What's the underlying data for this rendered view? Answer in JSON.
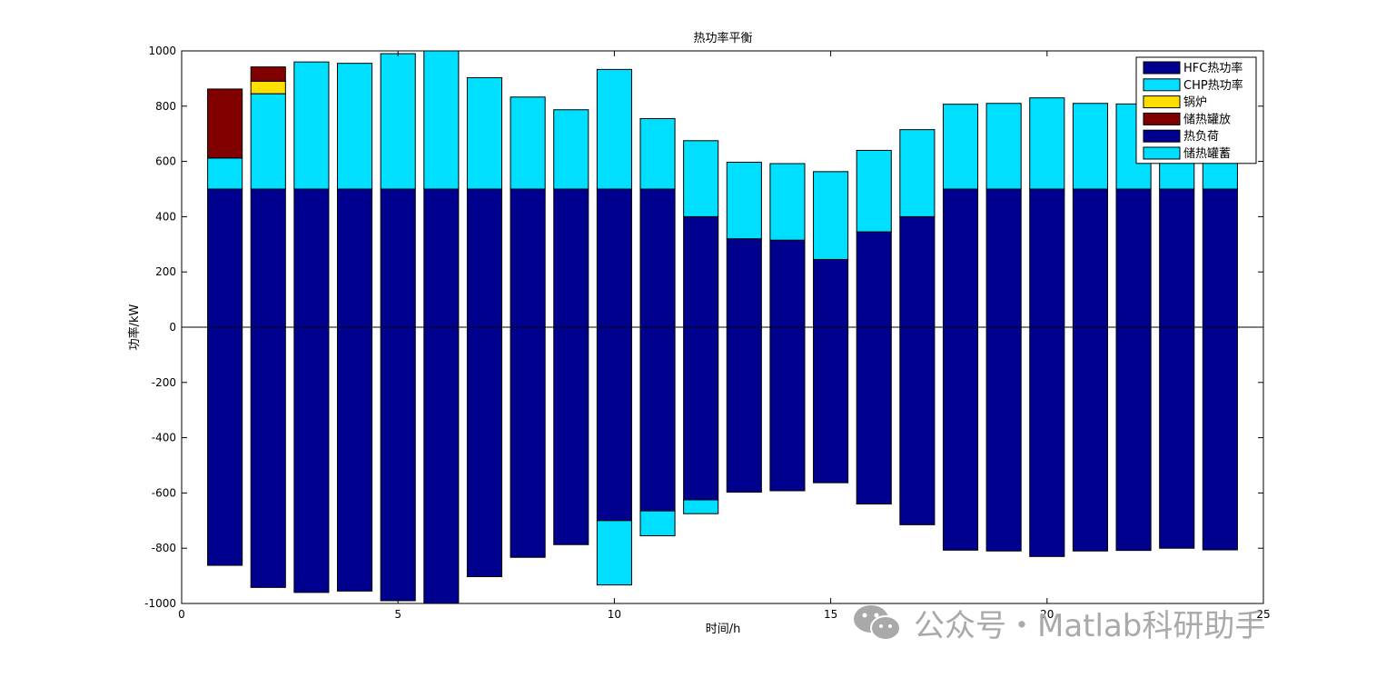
{
  "chart_data": {
    "type": "bar",
    "stacked": true,
    "title": "热功率平衡",
    "xlabel": "时间/h",
    "ylabel": "功率/kW",
    "xlim": [
      0,
      25
    ],
    "ylim": [
      -1000,
      1000
    ],
    "xticks": [
      0,
      5,
      10,
      15,
      20,
      25
    ],
    "yticks": [
      -1000,
      -800,
      -600,
      -400,
      -200,
      0,
      200,
      400,
      600,
      800,
      1000
    ],
    "grid": false,
    "legend_position": "top-right",
    "x": [
      1,
      2,
      3,
      4,
      5,
      6,
      7,
      8,
      9,
      10,
      11,
      12,
      13,
      14,
      15,
      16,
      17,
      18,
      19,
      20,
      21,
      22,
      23,
      24
    ],
    "series": [
      {
        "name": "HFC热功率",
        "color": "#00008f",
        "values": [
          500,
          500,
          500,
          500,
          500,
          500,
          500,
          500,
          500,
          500,
          500,
          400,
          320,
          315,
          245,
          345,
          400,
          500,
          500,
          500,
          500,
          500,
          500,
          500
        ]
      },
      {
        "name": "CHP热功率",
        "color": "#00dfff",
        "values": [
          112,
          345,
          460,
          455,
          490,
          500,
          403,
          333,
          287,
          433,
          255,
          275,
          277,
          277,
          318,
          295,
          315,
          307,
          310,
          330,
          310,
          308,
          300,
          306
        ]
      },
      {
        "name": "锅炉",
        "color": "#ffdf00",
        "values": [
          0,
          45,
          0,
          0,
          0,
          0,
          0,
          0,
          0,
          0,
          0,
          0,
          0,
          0,
          0,
          0,
          0,
          0,
          0,
          0,
          0,
          0,
          0,
          0
        ]
      },
      {
        "name": "储热罐放",
        "color": "#800000",
        "values": [
          250,
          52,
          0,
          0,
          0,
          0,
          0,
          0,
          0,
          0,
          0,
          0,
          0,
          0,
          0,
          0,
          0,
          0,
          0,
          0,
          0,
          0,
          0,
          0
        ]
      },
      {
        "name": "热负荷",
        "color": "#00008f",
        "values": [
          -862,
          -942,
          -960,
          -955,
          -990,
          -1000,
          -903,
          -833,
          -787,
          -700,
          -665,
          -625,
          -597,
          -592,
          -563,
          -640,
          -715,
          -807,
          -810,
          -830,
          -810,
          -808,
          -800,
          -806
        ]
      },
      {
        "name": "储热罐蓄",
        "color": "#00dfff",
        "values": [
          0,
          0,
          0,
          0,
          0,
          0,
          0,
          0,
          0,
          -233,
          -90,
          -50,
          0,
          0,
          0,
          0,
          0,
          0,
          0,
          0,
          0,
          0,
          0,
          0
        ]
      }
    ]
  },
  "watermark": {
    "text": "公众号・Matlab科研助手",
    "icon": "wechat-icon"
  }
}
